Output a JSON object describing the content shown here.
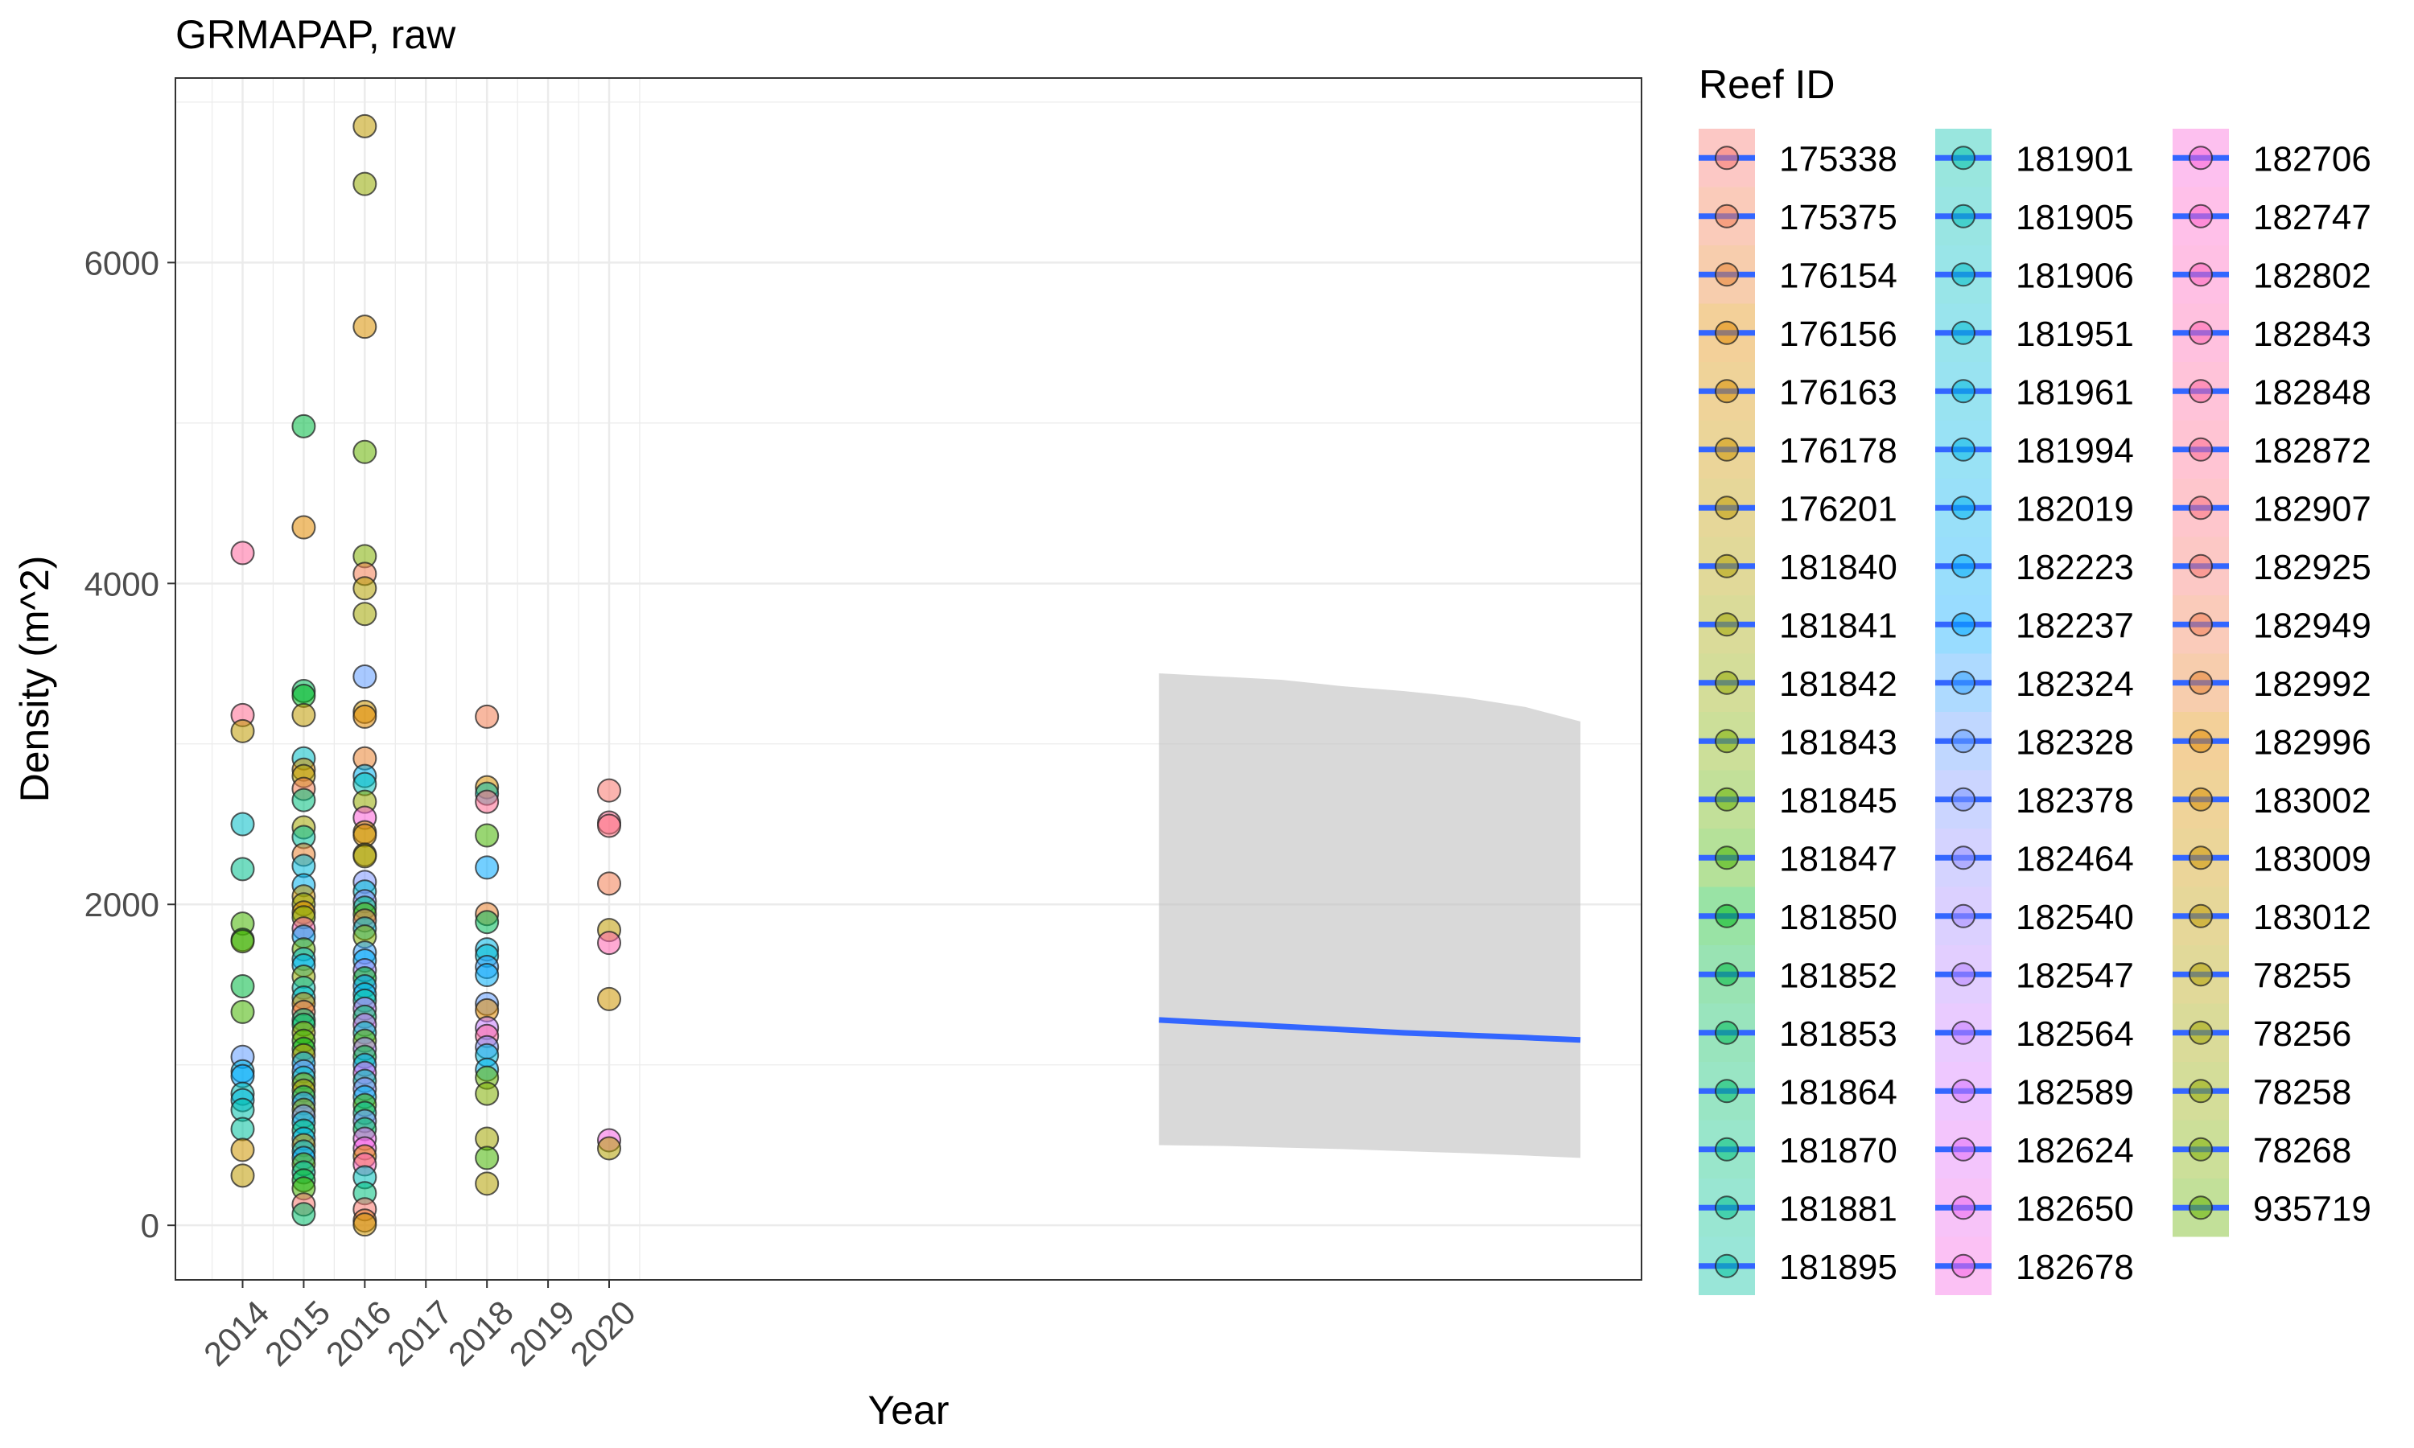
{
  "chart_data": {
    "type": "scatter",
    "title": "GRMAPAP, raw",
    "xlabel": "Year",
    "ylabel": "Density (m^2)",
    "xlim": [
      2012.9,
      2036.9
    ],
    "ylim": [
      -340,
      7150
    ],
    "x_ticks": [
      2014,
      2015,
      2016,
      2017,
      2018,
      2019,
      2020
    ],
    "x_tick_labels": [
      "2014",
      "2015",
      "2016",
      "2017",
      "2018",
      "2019",
      "2020"
    ],
    "y_ticks": [
      0,
      2000,
      4000,
      6000
    ],
    "y_tick_labels": [
      "0",
      "2000",
      "4000",
      "6000"
    ],
    "grid": true,
    "legend_title": "Reef ID",
    "legend_position": "right",
    "legend_entries": [
      {
        "label": "175338",
        "color": "#F8766D"
      },
      {
        "label": "175375",
        "color": "#F27D52"
      },
      {
        "label": "176154",
        "color": "#EA8331"
      },
      {
        "label": "176156",
        "color": "#E28A00"
      },
      {
        "label": "176163",
        "color": "#D89000"
      },
      {
        "label": "176178",
        "color": "#CD9600"
      },
      {
        "label": "176201",
        "color": "#C09B00"
      },
      {
        "label": "181840",
        "color": "#B3A000"
      },
      {
        "label": "181841",
        "color": "#A3A500"
      },
      {
        "label": "181842",
        "color": "#93AA00"
      },
      {
        "label": "181843",
        "color": "#7FAE00"
      },
      {
        "label": "181845",
        "color": "#66B200"
      },
      {
        "label": "181847",
        "color": "#45B500"
      },
      {
        "label": "181850",
        "color": "#00B81F"
      },
      {
        "label": "181852",
        "color": "#00BA42"
      },
      {
        "label": "181853",
        "color": "#00BC59"
      },
      {
        "label": "181864",
        "color": "#00BE6C"
      },
      {
        "label": "181870",
        "color": "#00C07E"
      },
      {
        "label": "181881",
        "color": "#00C08E"
      },
      {
        "label": "181895",
        "color": "#00C19E"
      },
      {
        "label": "181901",
        "color": "#00C0AC"
      },
      {
        "label": "181905",
        "color": "#00BFBA"
      },
      {
        "label": "181906",
        "color": "#00BEC6"
      },
      {
        "label": "181951",
        "color": "#00BCD2"
      },
      {
        "label": "181961",
        "color": "#00BADC"
      },
      {
        "label": "181994",
        "color": "#00B6E6"
      },
      {
        "label": "182019",
        "color": "#00B2EF"
      },
      {
        "label": "182223",
        "color": "#00ADF7"
      },
      {
        "label": "182237",
        "color": "#00A7FF"
      },
      {
        "label": "182324",
        "color": "#35A2FF"
      },
      {
        "label": "182328",
        "color": "#619CFF"
      },
      {
        "label": "182378",
        "color": "#7C96FF"
      },
      {
        "label": "182464",
        "color": "#9490FF"
      },
      {
        "label": "182540",
        "color": "#A58AFF"
      },
      {
        "label": "182547",
        "color": "#B684FF"
      },
      {
        "label": "182564",
        "color": "#C77CFF"
      },
      {
        "label": "182589",
        "color": "#D575FE"
      },
      {
        "label": "182624",
        "color": "#E26EF7"
      },
      {
        "label": "182650",
        "color": "#EC68EE"
      },
      {
        "label": "182678",
        "color": "#F564E3"
      },
      {
        "label": "182706",
        "color": "#FB61D7"
      },
      {
        "label": "182747",
        "color": "#FF61C9"
      },
      {
        "label": "182802",
        "color": "#FF62BC"
      },
      {
        "label": "182843",
        "color": "#FF65AE"
      },
      {
        "label": "182848",
        "color": "#FF689F"
      },
      {
        "label": "182872",
        "color": "#FF6C91"
      },
      {
        "label": "182907",
        "color": "#FC717F"
      },
      {
        "label": "182925",
        "color": "#F8766D"
      },
      {
        "label": "182949",
        "color": "#F27D52"
      },
      {
        "label": "182992",
        "color": "#EA8331"
      },
      {
        "label": "182996",
        "color": "#E28A00"
      },
      {
        "label": "183002",
        "color": "#D89000"
      },
      {
        "label": "183009",
        "color": "#CD9600"
      },
      {
        "label": "183012",
        "color": "#C09B00"
      },
      {
        "label": "78255",
        "color": "#B3A000"
      },
      {
        "label": "78256",
        "color": "#A3A500"
      },
      {
        "label": "78258",
        "color": "#93AA00"
      },
      {
        "label": "78268",
        "color": "#7FAE00"
      },
      {
        "label": "935719",
        "color": "#66B200"
      }
    ],
    "points": [
      {
        "x": 2014,
        "y": 4190,
        "color": "#FF689F"
      },
      {
        "x": 2014,
        "y": 3180,
        "color": "#FF6C91"
      },
      {
        "x": 2014,
        "y": 3080,
        "color": "#C09B00"
      },
      {
        "x": 2014,
        "y": 2500,
        "color": "#00BEC6"
      },
      {
        "x": 2014,
        "y": 2220,
        "color": "#00C08E"
      },
      {
        "x": 2014,
        "y": 1880,
        "color": "#45B500"
      },
      {
        "x": 2014,
        "y": 1780,
        "color": "#00B81F"
      },
      {
        "x": 2014,
        "y": 1770,
        "color": "#66B200"
      },
      {
        "x": 2014,
        "y": 1490,
        "color": "#00BA42"
      },
      {
        "x": 2014,
        "y": 1330,
        "color": "#45B500"
      },
      {
        "x": 2014,
        "y": 1050,
        "color": "#619CFF"
      },
      {
        "x": 2014,
        "y": 960,
        "color": "#00B6E6"
      },
      {
        "x": 2014,
        "y": 930,
        "color": "#00A7FF"
      },
      {
        "x": 2014,
        "y": 820,
        "color": "#00BFBA"
      },
      {
        "x": 2014,
        "y": 780,
        "color": "#00BADC"
      },
      {
        "x": 2014,
        "y": 720,
        "color": "#00C0AC"
      },
      {
        "x": 2014,
        "y": 600,
        "color": "#00C19E"
      },
      {
        "x": 2014,
        "y": 470,
        "color": "#CD9600"
      },
      {
        "x": 2014,
        "y": 310,
        "color": "#C09B00"
      },
      {
        "x": 2015,
        "y": 4980,
        "color": "#00BA42"
      },
      {
        "x": 2015,
        "y": 4350,
        "color": "#E28A00"
      },
      {
        "x": 2015,
        "y": 3330,
        "color": "#00BC59"
      },
      {
        "x": 2015,
        "y": 3300,
        "color": "#00B81F"
      },
      {
        "x": 2015,
        "y": 3180,
        "color": "#C09B00"
      },
      {
        "x": 2015,
        "y": 2910,
        "color": "#00BEC6"
      },
      {
        "x": 2015,
        "y": 2840,
        "color": "#D89000"
      },
      {
        "x": 2015,
        "y": 2800,
        "color": "#B3A000"
      },
      {
        "x": 2015,
        "y": 2720,
        "color": "#F27D52"
      },
      {
        "x": 2015,
        "y": 2650,
        "color": "#00C07E"
      },
      {
        "x": 2015,
        "y": 2480,
        "color": "#A3A500"
      },
      {
        "x": 2015,
        "y": 2420,
        "color": "#00C19E"
      },
      {
        "x": 2015,
        "y": 2310,
        "color": "#EA8331"
      },
      {
        "x": 2015,
        "y": 2240,
        "color": "#00BADC"
      },
      {
        "x": 2015,
        "y": 2120,
        "color": "#00B2EF"
      },
      {
        "x": 2015,
        "y": 2050,
        "color": "#CD9600"
      },
      {
        "x": 2015,
        "y": 2000,
        "color": "#93AA00"
      },
      {
        "x": 2015,
        "y": 1950,
        "color": "#E28A00"
      },
      {
        "x": 2015,
        "y": 1920,
        "color": "#7FAE00"
      },
      {
        "x": 2015,
        "y": 1850,
        "color": "#FF65AE"
      },
      {
        "x": 2015,
        "y": 1800,
        "color": "#00A7FF"
      },
      {
        "x": 2015,
        "y": 1720,
        "color": "#66B200"
      },
      {
        "x": 2015,
        "y": 1660,
        "color": "#00BCD2"
      },
      {
        "x": 2015,
        "y": 1620,
        "color": "#00B6E6"
      },
      {
        "x": 2015,
        "y": 1550,
        "color": "#93AA00"
      },
      {
        "x": 2015,
        "y": 1480,
        "color": "#00C0AC"
      },
      {
        "x": 2015,
        "y": 1420,
        "color": "#00BEC6"
      },
      {
        "x": 2015,
        "y": 1380,
        "color": "#D89000"
      },
      {
        "x": 2015,
        "y": 1330,
        "color": "#F27D52"
      },
      {
        "x": 2015,
        "y": 1280,
        "color": "#00C08E"
      },
      {
        "x": 2015,
        "y": 1250,
        "color": "#00BC59"
      },
      {
        "x": 2015,
        "y": 1200,
        "color": "#A3A500"
      },
      {
        "x": 2015,
        "y": 1150,
        "color": "#45B500"
      },
      {
        "x": 2015,
        "y": 1100,
        "color": "#00B81F"
      },
      {
        "x": 2015,
        "y": 1060,
        "color": "#C09B00"
      },
      {
        "x": 2015,
        "y": 1010,
        "color": "#00ADF7"
      },
      {
        "x": 2015,
        "y": 960,
        "color": "#619CFF"
      },
      {
        "x": 2015,
        "y": 920,
        "color": "#00BFBA"
      },
      {
        "x": 2015,
        "y": 880,
        "color": "#7FAE00"
      },
      {
        "x": 2015,
        "y": 840,
        "color": "#B3A000"
      },
      {
        "x": 2015,
        "y": 800,
        "color": "#00BE6C"
      },
      {
        "x": 2015,
        "y": 760,
        "color": "#35A2FF"
      },
      {
        "x": 2015,
        "y": 720,
        "color": "#93AA00"
      },
      {
        "x": 2015,
        "y": 680,
        "color": "#7C96FF"
      },
      {
        "x": 2015,
        "y": 640,
        "color": "#00BADC"
      },
      {
        "x": 2015,
        "y": 590,
        "color": "#00C07E"
      },
      {
        "x": 2015,
        "y": 540,
        "color": "#00B2EF"
      },
      {
        "x": 2015,
        "y": 500,
        "color": "#CD9600"
      },
      {
        "x": 2015,
        "y": 460,
        "color": "#00BCD2"
      },
      {
        "x": 2015,
        "y": 420,
        "color": "#00A7FF"
      },
      {
        "x": 2015,
        "y": 380,
        "color": "#66B200"
      },
      {
        "x": 2015,
        "y": 330,
        "color": "#00C19E"
      },
      {
        "x": 2015,
        "y": 280,
        "color": "#00BA42"
      },
      {
        "x": 2015,
        "y": 230,
        "color": "#45B500"
      },
      {
        "x": 2015,
        "y": 130,
        "color": "#F8766D"
      },
      {
        "x": 2015,
        "y": 70,
        "color": "#00BE6C"
      },
      {
        "x": 2016,
        "y": 6850,
        "color": "#C09B00"
      },
      {
        "x": 2016,
        "y": 6490,
        "color": "#93AA00"
      },
      {
        "x": 2016,
        "y": 5600,
        "color": "#D89000"
      },
      {
        "x": 2016,
        "y": 4820,
        "color": "#66B200"
      },
      {
        "x": 2016,
        "y": 4170,
        "color": "#7FAE00"
      },
      {
        "x": 2016,
        "y": 4060,
        "color": "#F27D52"
      },
      {
        "x": 2016,
        "y": 3970,
        "color": "#B3A000"
      },
      {
        "x": 2016,
        "y": 3810,
        "color": "#A3A500"
      },
      {
        "x": 2016,
        "y": 3420,
        "color": "#619CFF"
      },
      {
        "x": 2016,
        "y": 3200,
        "color": "#CD9600"
      },
      {
        "x": 2016,
        "y": 3170,
        "color": "#E28A00"
      },
      {
        "x": 2016,
        "y": 2910,
        "color": "#EA8331"
      },
      {
        "x": 2016,
        "y": 2800,
        "color": "#00B2EF"
      },
      {
        "x": 2016,
        "y": 2750,
        "color": "#00BFBA"
      },
      {
        "x": 2016,
        "y": 2640,
        "color": "#93AA00"
      },
      {
        "x": 2016,
        "y": 2540,
        "color": "#FB61D7"
      },
      {
        "x": 2016,
        "y": 2450,
        "color": "#C09B00"
      },
      {
        "x": 2016,
        "y": 2430,
        "color": "#D89000"
      },
      {
        "x": 2016,
        "y": 2310,
        "color": "#A3A500"
      },
      {
        "x": 2016,
        "y": 2300,
        "color": "#B3A000"
      },
      {
        "x": 2016,
        "y": 2140,
        "color": "#7C96FF"
      },
      {
        "x": 2016,
        "y": 2080,
        "color": "#00BCD2"
      },
      {
        "x": 2016,
        "y": 2020,
        "color": "#9490FF"
      },
      {
        "x": 2016,
        "y": 1980,
        "color": "#00C07E"
      },
      {
        "x": 2016,
        "y": 1940,
        "color": "#45B500"
      },
      {
        "x": 2016,
        "y": 1900,
        "color": "#F27D52"
      },
      {
        "x": 2016,
        "y": 1850,
        "color": "#00BADC"
      },
      {
        "x": 2016,
        "y": 1800,
        "color": "#7FAE00"
      },
      {
        "x": 2016,
        "y": 1700,
        "color": "#35A2FF"
      },
      {
        "x": 2016,
        "y": 1650,
        "color": "#00ADF7"
      },
      {
        "x": 2016,
        "y": 1590,
        "color": "#A58AFF"
      },
      {
        "x": 2016,
        "y": 1540,
        "color": "#00B81F"
      },
      {
        "x": 2016,
        "y": 1490,
        "color": "#00A7FF"
      },
      {
        "x": 2016,
        "y": 1440,
        "color": "#00B6E6"
      },
      {
        "x": 2016,
        "y": 1400,
        "color": "#00C19E"
      },
      {
        "x": 2016,
        "y": 1350,
        "color": "#C77CFF"
      },
      {
        "x": 2016,
        "y": 1300,
        "color": "#00BE6C"
      },
      {
        "x": 2016,
        "y": 1250,
        "color": "#D575FE"
      },
      {
        "x": 2016,
        "y": 1200,
        "color": "#00BEC6"
      },
      {
        "x": 2016,
        "y": 1150,
        "color": "#66B200"
      },
      {
        "x": 2016,
        "y": 1100,
        "color": "#B684FF"
      },
      {
        "x": 2016,
        "y": 1050,
        "color": "#00BA42"
      },
      {
        "x": 2016,
        "y": 1000,
        "color": "#00ADF7"
      },
      {
        "x": 2016,
        "y": 950,
        "color": "#E26EF7"
      },
      {
        "x": 2016,
        "y": 900,
        "color": "#00C0AC"
      },
      {
        "x": 2016,
        "y": 850,
        "color": "#9490FF"
      },
      {
        "x": 2016,
        "y": 800,
        "color": "#00B2EF"
      },
      {
        "x": 2016,
        "y": 750,
        "color": "#45B500"
      },
      {
        "x": 2016,
        "y": 700,
        "color": "#00C08E"
      },
      {
        "x": 2016,
        "y": 650,
        "color": "#7C96FF"
      },
      {
        "x": 2016,
        "y": 600,
        "color": "#00BC59"
      },
      {
        "x": 2016,
        "y": 540,
        "color": "#EC68EE"
      },
      {
        "x": 2016,
        "y": 480,
        "color": "#F564E3"
      },
      {
        "x": 2016,
        "y": 430,
        "color": "#E28A00"
      },
      {
        "x": 2016,
        "y": 380,
        "color": "#FF62BC"
      },
      {
        "x": 2016,
        "y": 300,
        "color": "#00BFBA"
      },
      {
        "x": 2016,
        "y": 200,
        "color": "#00C07E"
      },
      {
        "x": 2016,
        "y": 100,
        "color": "#F8766D"
      },
      {
        "x": 2016,
        "y": 30,
        "color": "#EA8331"
      },
      {
        "x": 2016,
        "y": 5,
        "color": "#CD9600"
      },
      {
        "x": 2018,
        "y": 3170,
        "color": "#F27D52"
      },
      {
        "x": 2018,
        "y": 2730,
        "color": "#D89000"
      },
      {
        "x": 2018,
        "y": 2690,
        "color": "#00C0AC"
      },
      {
        "x": 2018,
        "y": 2640,
        "color": "#FF6C91"
      },
      {
        "x": 2018,
        "y": 2430,
        "color": "#45B500"
      },
      {
        "x": 2018,
        "y": 2230,
        "color": "#00A7FF"
      },
      {
        "x": 2018,
        "y": 1940,
        "color": "#EA8331"
      },
      {
        "x": 2018,
        "y": 1890,
        "color": "#00BC59"
      },
      {
        "x": 2018,
        "y": 1720,
        "color": "#00B6E6"
      },
      {
        "x": 2018,
        "y": 1680,
        "color": "#00BCD2"
      },
      {
        "x": 2018,
        "y": 1610,
        "color": "#35A2FF"
      },
      {
        "x": 2018,
        "y": 1560,
        "color": "#00ADF7"
      },
      {
        "x": 2018,
        "y": 1380,
        "color": "#619CFF"
      },
      {
        "x": 2018,
        "y": 1340,
        "color": "#E28A00"
      },
      {
        "x": 2018,
        "y": 1230,
        "color": "#C77CFF"
      },
      {
        "x": 2018,
        "y": 1180,
        "color": "#FF689F"
      },
      {
        "x": 2018,
        "y": 1110,
        "color": "#7C96FF"
      },
      {
        "x": 2018,
        "y": 1060,
        "color": "#00BADC"
      },
      {
        "x": 2018,
        "y": 970,
        "color": "#00B2EF"
      },
      {
        "x": 2018,
        "y": 920,
        "color": "#66B200"
      },
      {
        "x": 2018,
        "y": 820,
        "color": "#7FAE00"
      },
      {
        "x": 2018,
        "y": 540,
        "color": "#A3A500"
      },
      {
        "x": 2018,
        "y": 420,
        "color": "#45B500"
      },
      {
        "x": 2018,
        "y": 260,
        "color": "#B3A000"
      },
      {
        "x": 2020,
        "y": 2710,
        "color": "#F8766D"
      },
      {
        "x": 2020,
        "y": 2510,
        "color": "#FF6C91"
      },
      {
        "x": 2020,
        "y": 2490,
        "color": "#FC717F"
      },
      {
        "x": 2020,
        "y": 2130,
        "color": "#F27D52"
      },
      {
        "x": 2020,
        "y": 1840,
        "color": "#C09B00"
      },
      {
        "x": 2020,
        "y": 1760,
        "color": "#FF65AE"
      },
      {
        "x": 2020,
        "y": 1410,
        "color": "#CD9600"
      },
      {
        "x": 2020,
        "y": 530,
        "color": "#F564E3"
      },
      {
        "x": 2020,
        "y": 480,
        "color": "#B3A000"
      }
    ],
    "trend": {
      "color": "#3366FF",
      "band_color": "#BFBFBF",
      "points": [
        {
          "x": 2029.0,
          "y": 1280,
          "lower": 500,
          "upper": 3440
        },
        {
          "x": 2030.0,
          "y": 1260,
          "lower": 495,
          "upper": 3420
        },
        {
          "x": 2031.0,
          "y": 1240,
          "lower": 485,
          "upper": 3400
        },
        {
          "x": 2032.0,
          "y": 1220,
          "lower": 475,
          "upper": 3360
        },
        {
          "x": 2033.0,
          "y": 1200,
          "lower": 462,
          "upper": 3330
        },
        {
          "x": 2034.0,
          "y": 1185,
          "lower": 450,
          "upper": 3290
        },
        {
          "x": 2035.0,
          "y": 1170,
          "lower": 435,
          "upper": 3230
        },
        {
          "x": 2035.9,
          "y": 1155,
          "lower": 420,
          "upper": 3140
        }
      ]
    }
  }
}
